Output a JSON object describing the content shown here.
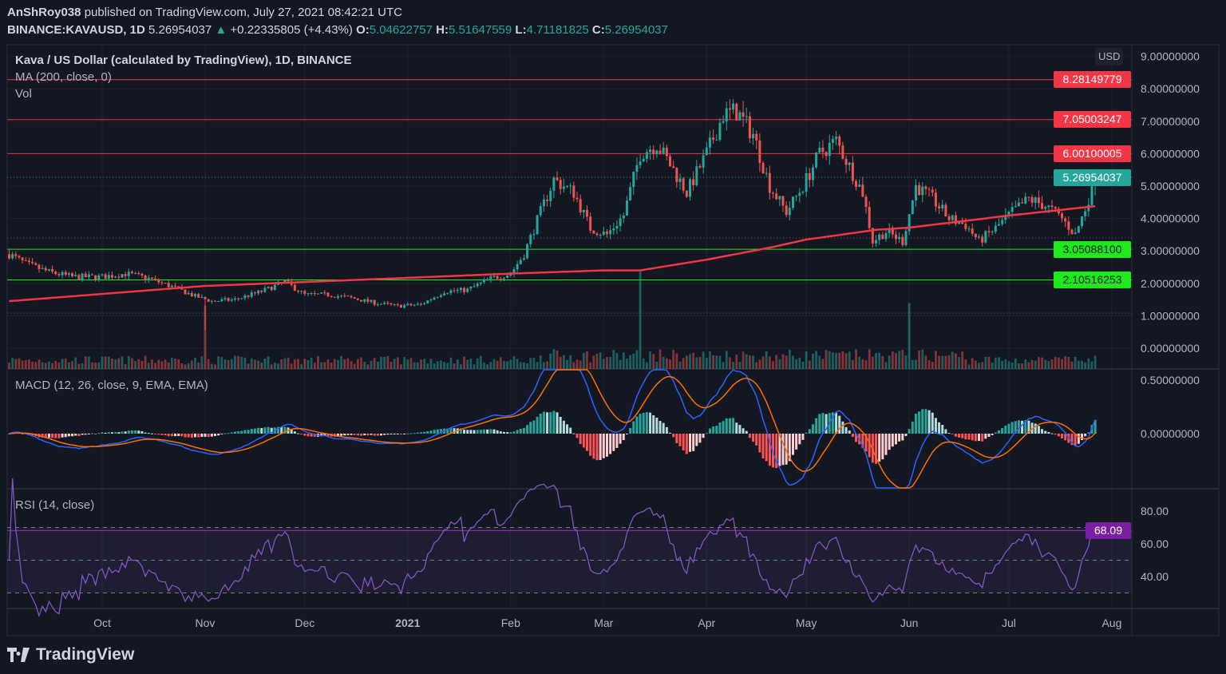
{
  "header": {
    "publisher": "AnShRoy038",
    "published_text": "published on TradingView.com, July 27, 2021 08:42:21 UTC",
    "symbol": "BINANCE:KAVAUSD, 1D",
    "last": "5.26954037",
    "change": "+0.22335805 (+4.43%)",
    "o_label": "O:",
    "o": "5.04622757",
    "h_label": "H:",
    "h": "5.51647559",
    "l_label": "L:",
    "l": "4.71181825",
    "c_label": "C:",
    "c": "5.26954037"
  },
  "legend": {
    "title": "Kava / US Dollar (calculated by TradingView), 1D, BINANCE",
    "ma": "MA (200, close, 0)",
    "vol": "Vol",
    "macd": "MACD (12, 26, close, 9, EMA, EMA)",
    "rsi": "RSI (14, close)"
  },
  "currency": "USD",
  "branding": "TradingView",
  "colors": {
    "up": "#26a69a",
    "down": "#ef5350",
    "ma": "#f23645",
    "macd": "#2962ff",
    "signal": "#ff6d00",
    "rsi": "#7e57c2",
    "level_red": "#f23645",
    "level_green": "#1de91d"
  },
  "chart_data": {
    "type": "candlestick",
    "symbol": "KAVAUSD",
    "interval": "1D",
    "start_date": "2020-09-03",
    "end_date": "2021-07-27",
    "close_anchors": [
      [
        "2020-09-03",
        2.9
      ],
      [
        "2020-09-08",
        2.6
      ],
      [
        "2020-09-15",
        2.35
      ],
      [
        "2020-09-22",
        2.2
      ],
      [
        "2020-10-01",
        2.2
      ],
      [
        "2020-10-08",
        2.3
      ],
      [
        "2020-10-15",
        2.15
      ],
      [
        "2020-10-22",
        1.9
      ],
      [
        "2020-10-29",
        1.6
      ],
      [
        "2020-11-03",
        1.45
      ],
      [
        "2020-11-10",
        1.5
      ],
      [
        "2020-11-18",
        1.75
      ],
      [
        "2020-11-25",
        2.05
      ],
      [
        "2020-12-01",
        1.65
      ],
      [
        "2020-12-08",
        1.65
      ],
      [
        "2020-12-15",
        1.55
      ],
      [
        "2020-12-22",
        1.4
      ],
      [
        "2020-12-29",
        1.3
      ],
      [
        "2021-01-05",
        1.35
      ],
      [
        "2021-01-12",
        1.75
      ],
      [
        "2021-01-19",
        1.8
      ],
      [
        "2021-01-26",
        2.15
      ],
      [
        "2021-02-01",
        2.3
      ],
      [
        "2021-02-05",
        2.9
      ],
      [
        "2021-02-10",
        4.2
      ],
      [
        "2021-02-14",
        5.2
      ],
      [
        "2021-02-20",
        4.8
      ],
      [
        "2021-02-25",
        3.7
      ],
      [
        "2021-03-02",
        3.5
      ],
      [
        "2021-03-07",
        4.1
      ],
      [
        "2021-03-12",
        6.0
      ],
      [
        "2021-03-17",
        6.3
      ],
      [
        "2021-03-22",
        5.5
      ],
      [
        "2021-03-26",
        4.8
      ],
      [
        "2021-04-01",
        6.0
      ],
      [
        "2021-04-06",
        7.2
      ],
      [
        "2021-04-10",
        7.3
      ],
      [
        "2021-04-15",
        6.6
      ],
      [
        "2021-04-20",
        5.0
      ],
      [
        "2021-04-25",
        4.2
      ],
      [
        "2021-04-30",
        5.0
      ],
      [
        "2021-05-05",
        6.0
      ],
      [
        "2021-05-10",
        6.4
      ],
      [
        "2021-05-14",
        5.6
      ],
      [
        "2021-05-18",
        4.8
      ],
      [
        "2021-05-21",
        3.3
      ],
      [
        "2021-05-25",
        3.6
      ],
      [
        "2021-05-30",
        3.3
      ],
      [
        "2021-06-03",
        5.0
      ],
      [
        "2021-06-08",
        4.6
      ],
      [
        "2021-06-13",
        4.0
      ],
      [
        "2021-06-18",
        3.8
      ],
      [
        "2021-06-22",
        3.3
      ],
      [
        "2021-06-27",
        3.7
      ],
      [
        "2021-07-02",
        4.2
      ],
      [
        "2021-07-07",
        4.6
      ],
      [
        "2021-07-12",
        4.4
      ],
      [
        "2021-07-17",
        4.0
      ],
      [
        "2021-07-21",
        3.5
      ],
      [
        "2021-07-24",
        4.3
      ],
      [
        "2021-07-27",
        5.26954037
      ]
    ],
    "last_candle": {
      "open": 5.04622757,
      "high": 5.51647559,
      "low": 4.71181825,
      "close": 5.26954037
    },
    "ma200_anchors": [
      [
        "2020-09-03",
        1.45
      ],
      [
        "2020-11-01",
        1.92
      ],
      [
        "2021-01-01",
        2.17
      ],
      [
        "2021-02-01",
        2.3
      ],
      [
        "2021-03-01",
        2.4
      ],
      [
        "2021-03-12",
        2.4
      ],
      [
        "2021-04-01",
        2.73
      ],
      [
        "2021-04-20",
        3.1
      ],
      [
        "2021-05-01",
        3.35
      ],
      [
        "2021-05-22",
        3.65
      ],
      [
        "2021-06-01",
        3.72
      ],
      [
        "2021-07-01",
        4.09
      ],
      [
        "2021-07-27",
        4.38
      ]
    ],
    "levels": [
      {
        "price": "8.28149779",
        "color": "red"
      },
      {
        "price": "7.05003247",
        "color": "red"
      },
      {
        "price": "6.00100005",
        "color": "red"
      },
      {
        "price": "5.26954037",
        "color": "current"
      },
      {
        "price": "3.05088100",
        "color": "green"
      },
      {
        "price": "2.10516253",
        "color": "green"
      }
    ],
    "price_axis": {
      "ticks": [
        "0.00000000",
        "1.00000000",
        "2.00000000",
        "3.00000000",
        "4.00000000",
        "5.00000000",
        "6.00000000",
        "7.00000000",
        "8.00000000",
        "9.00000000"
      ],
      "range": [
        0,
        9
      ]
    },
    "macd_axis": {
      "ticks": [
        "0.00000000",
        "0.50000000"
      ]
    },
    "rsi_axis": {
      "ticks": [
        "40.00",
        "60.00",
        "80.00"
      ],
      "bands": [
        30,
        50,
        70
      ],
      "last": "68.09"
    },
    "time_axis": [
      [
        "Oct",
        "2020-10-01"
      ],
      [
        "Nov",
        "2020-11-01"
      ],
      [
        "Dec",
        "2020-12-01"
      ],
      [
        "2021",
        "2021-01-01"
      ],
      [
        "Feb",
        "2021-02-01"
      ],
      [
        "Mar",
        "2021-03-01"
      ],
      [
        "Apr",
        "2021-04-01"
      ],
      [
        "May",
        "2021-05-01"
      ],
      [
        "Jun",
        "2021-06-01"
      ],
      [
        "Jul",
        "2021-07-01"
      ],
      [
        "Aug",
        "2021-08-01"
      ]
    ]
  }
}
